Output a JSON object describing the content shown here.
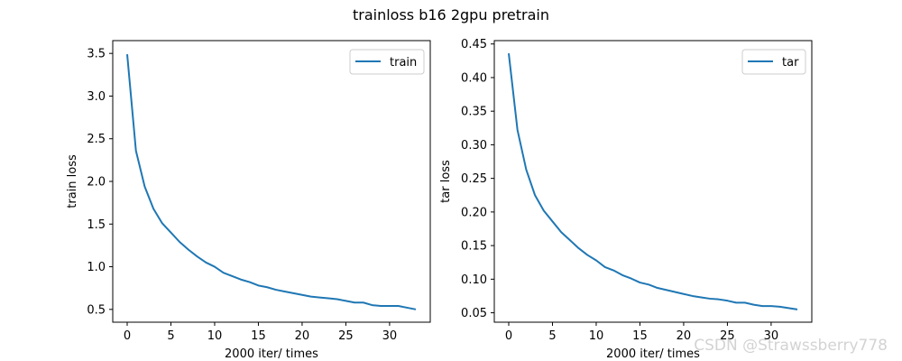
{
  "figure": {
    "title": "trainloss b16 2gpu pretrain",
    "watermark": "CSDN @Strawssberry778",
    "line_color": "#1f77b4"
  },
  "chart_data": [
    {
      "type": "line",
      "title": "",
      "xlabel": "2000 iter/ times",
      "ylabel": "train loss",
      "xlim": [
        -1.65,
        34.65
      ],
      "ylim": [
        0.35,
        3.65
      ],
      "xticks": [
        0,
        5,
        10,
        15,
        20,
        25,
        30
      ],
      "xtick_labels": [
        "0",
        "5",
        "10",
        "15",
        "20",
        "25",
        "30"
      ],
      "yticks": [
        0.5,
        1.0,
        1.5,
        2.0,
        2.5,
        3.0,
        3.5
      ],
      "ytick_labels": [
        "0.5",
        "1.0",
        "1.5",
        "2.0",
        "2.5",
        "3.0",
        "3.5"
      ],
      "legend": {
        "position": "upper-right",
        "entries": [
          "train"
        ]
      },
      "grid": false,
      "series": [
        {
          "name": "train",
          "x": [
            0,
            1,
            2,
            3,
            4,
            5,
            6,
            7,
            8,
            9,
            10,
            11,
            12,
            13,
            14,
            15,
            16,
            17,
            18,
            19,
            20,
            21,
            22,
            23,
            24,
            25,
            26,
            27,
            28,
            29,
            30,
            31,
            32,
            33
          ],
          "values": [
            3.49,
            2.36,
            1.94,
            1.68,
            1.51,
            1.4,
            1.29,
            1.2,
            1.12,
            1.05,
            1.0,
            0.93,
            0.89,
            0.85,
            0.82,
            0.78,
            0.76,
            0.73,
            0.71,
            0.69,
            0.67,
            0.65,
            0.64,
            0.63,
            0.62,
            0.6,
            0.58,
            0.58,
            0.55,
            0.54,
            0.54,
            0.54,
            0.52,
            0.5
          ]
        }
      ]
    },
    {
      "type": "line",
      "title": "",
      "xlabel": "2000 iter/ times",
      "ylabel": "tar loss",
      "xlim": [
        -1.65,
        34.65
      ],
      "ylim": [
        0.036,
        0.455
      ],
      "xticks": [
        0,
        5,
        10,
        15,
        20,
        25,
        30
      ],
      "xtick_labels": [
        "0",
        "5",
        "10",
        "15",
        "20",
        "25",
        "30"
      ],
      "yticks": [
        0.05,
        0.1,
        0.15,
        0.2,
        0.25,
        0.3,
        0.35,
        0.4,
        0.45
      ],
      "ytick_labels": [
        "0.05",
        "0.10",
        "0.15",
        "0.20",
        "0.25",
        "0.30",
        "0.35",
        "0.40",
        "0.45"
      ],
      "legend": {
        "position": "upper-right",
        "entries": [
          "tar"
        ]
      },
      "grid": false,
      "series": [
        {
          "name": "tar",
          "x": [
            0,
            1,
            2,
            3,
            4,
            5,
            6,
            7,
            8,
            9,
            10,
            11,
            12,
            13,
            14,
            15,
            16,
            17,
            18,
            19,
            20,
            21,
            22,
            23,
            24,
            25,
            26,
            27,
            28,
            29,
            30,
            31,
            32,
            33
          ],
          "values": [
            0.436,
            0.322,
            0.263,
            0.225,
            0.202,
            0.186,
            0.17,
            0.158,
            0.146,
            0.136,
            0.128,
            0.118,
            0.113,
            0.106,
            0.101,
            0.095,
            0.092,
            0.087,
            0.084,
            0.081,
            0.078,
            0.075,
            0.073,
            0.071,
            0.07,
            0.068,
            0.065,
            0.065,
            0.062,
            0.06,
            0.06,
            0.059,
            0.057,
            0.055
          ]
        }
      ]
    }
  ]
}
